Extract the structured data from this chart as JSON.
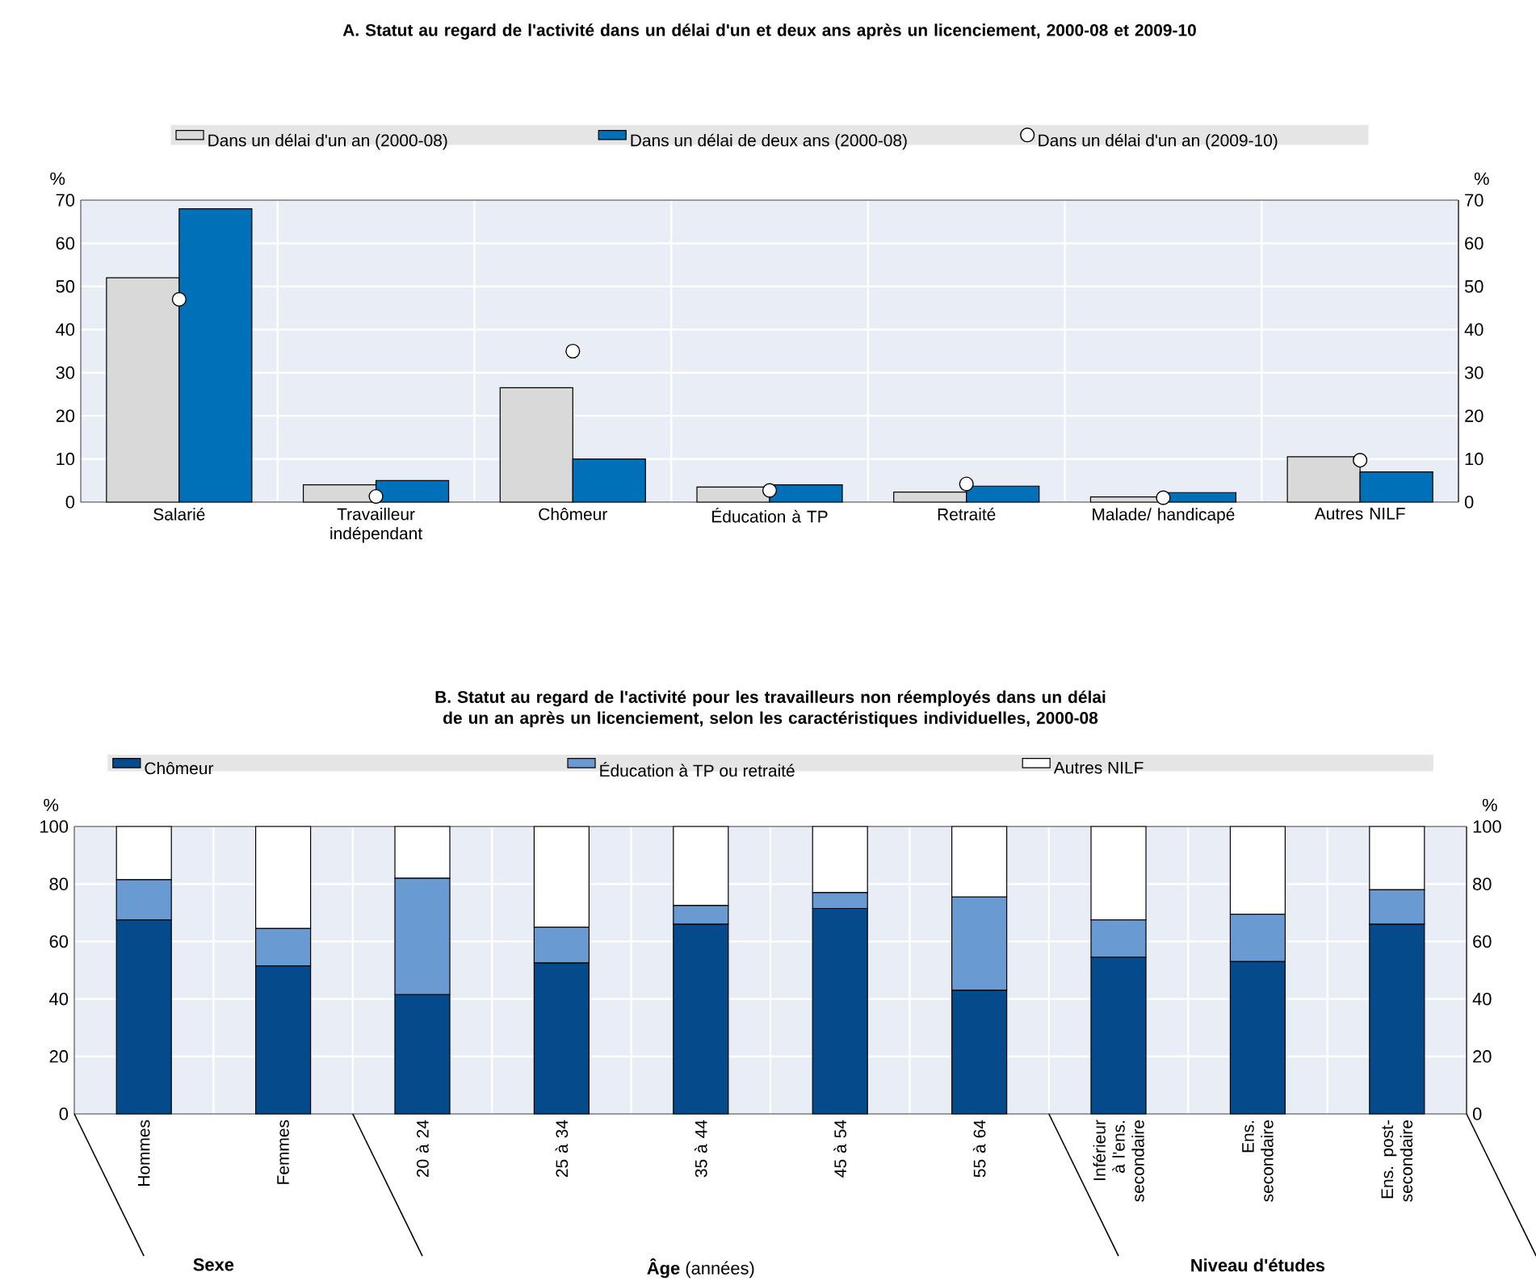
{
  "chart_data": [
    {
      "type": "bar",
      "title": "A. Statut au regard de l'activité dans un délai d'un et deux ans après un licenciement, 2000-08 et 2009-10",
      "ylabel": "%",
      "y2label": "%",
      "categories": [
        "Salarié",
        "Travailleur indépendant",
        "Chômeur",
        "Éducation à TP",
        "Retraité",
        "Malade/ handicapé",
        "Autres NILF"
      ],
      "series": [
        {
          "name": "Dans un délai d'un an (2000-08)",
          "color": "#d9d9d9",
          "values": [
            52,
            4,
            26.5,
            3.5,
            2.3,
            1.2,
            10.5
          ]
        },
        {
          "name": "Dans un délai de deux ans (2000-08)",
          "color": "#0070b8",
          "values": [
            68,
            5,
            10,
            4,
            3.7,
            2.2,
            7
          ]
        },
        {
          "type": "scatter",
          "name": "Dans un délai d'un an (2009-10)",
          "color": "#ffffff",
          "x": [
            "Salarié",
            "Travailleur indépendant",
            "Chômeur",
            "Éducation à TP",
            "Retraité",
            "Malade/ handicapé",
            "Autres NILF"
          ],
          "values": [
            47,
            1.3,
            35,
            2.7,
            4.2,
            1.0,
            9.7
          ]
        }
      ],
      "marker": "circle",
      "ylim": [
        0,
        70
      ],
      "yticks": [
        0,
        10,
        20,
        30,
        40,
        50,
        60,
        70
      ],
      "y2lim": [
        0,
        70
      ],
      "y2ticks": [
        0,
        10,
        20,
        30,
        40,
        50,
        60,
        70
      ],
      "grid": true,
      "legend": "top"
    },
    {
      "type": "bar",
      "title": "B. Statut au regard de l'activité pour les travailleurs non réemployés dans un délai de un an après un licenciement, selon les caractéristiques individuelles, 2000-08",
      "ylabel": "%",
      "y2label": "%",
      "categories": [
        "Hommes",
        "Femmes",
        "20 à 24",
        "25 à 34",
        "35 à 44",
        "45 à 54",
        "55 à 64",
        "Inférieur à l'ens. secondaire",
        "Ens. secondaire",
        "Ens. post-secondaire"
      ],
      "stacked": true,
      "series": [
        {
          "name": "Chômeur",
          "color": "#054a8a",
          "values": [
            67.5,
            51.5,
            41.5,
            52.5,
            66,
            71.5,
            43,
            54.5,
            53,
            66
          ]
        },
        {
          "name": "Éducation à TP ou retraité",
          "color": "#6a9ad2",
          "values": [
            14,
            13,
            40.5,
            12.5,
            6.5,
            5.5,
            32.5,
            13,
            16.5,
            12
          ]
        },
        {
          "name": "Autres NILF",
          "color": "#ffffff",
          "values": [
            18.5,
            35.5,
            18,
            35,
            27.5,
            23,
            24.5,
            32.5,
            30.5,
            22
          ]
        }
      ],
      "ylim": [
        0,
        100
      ],
      "yticks": [
        0,
        20,
        40,
        60,
        80,
        100
      ],
      "y2lim": [
        0,
        100
      ],
      "y2ticks": [
        0,
        20,
        40,
        60,
        80,
        100
      ],
      "annotations": [
        "**Sexe**",
        "**Âge** (années)",
        "**Niveau d'études**"
      ],
      "grid": true,
      "legend": "top"
    }
  ]
}
